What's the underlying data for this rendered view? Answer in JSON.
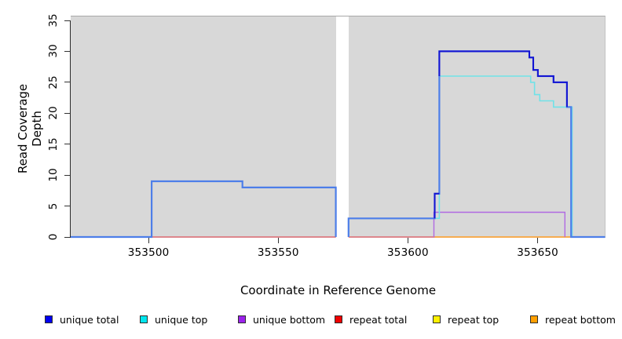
{
  "chart_data": {
    "type": "line",
    "subtype": "step-coverage-plot",
    "title": "",
    "xlabel": "Coordinate in Reference Genome",
    "ylabel": "Read Coverage Depth",
    "xlim": [
      353470,
      353676
    ],
    "ylim": [
      0,
      35
    ],
    "x_ticks": [
      353500,
      353550,
      353600,
      353650
    ],
    "y_ticks": [
      0,
      5,
      10,
      15,
      20,
      25,
      30,
      35
    ],
    "grid": false,
    "panel_bg": "#d8d8d8",
    "no_data_gap_x": [
      353572.2,
      353577.1
    ],
    "legend_position": "bottom",
    "legend": [
      {
        "label": "unique total",
        "color": "#0000f0"
      },
      {
        "label": "unique top",
        "color": "#00e6ee"
      },
      {
        "label": "unique bottom",
        "color": "#9c22ec"
      },
      {
        "label": "repeat total",
        "color": "#ee0000"
      },
      {
        "label": "repeat top",
        "color": "#fff000"
      },
      {
        "label": "repeat bottom",
        "color": "#ff9f00"
      }
    ],
    "series": [
      {
        "name": "repeat total",
        "color": "#e0565e",
        "width": 1.3,
        "subpaths": [
          [
            [
              353501.2,
              0
            ],
            [
              353572.2,
              0
            ]
          ],
          [
            [
              353577.1,
              0
            ],
            [
              353610.3,
              0
            ]
          ]
        ]
      },
      {
        "name": "repeat top",
        "color": "#fff000",
        "width": 1.3,
        "subpaths": []
      },
      {
        "name": "repeat bottom",
        "color": "#ff9d26",
        "width": 1.6,
        "subpaths": [
          [
            [
              353610.3,
              0
            ],
            [
              353663,
              0
            ]
          ]
        ]
      },
      {
        "name": "unique bottom",
        "color": "#b06ae2",
        "width": 1.4,
        "subpaths": [
          [
            [
              353610,
              0
            ],
            [
              353610,
              4
            ],
            [
              353660.5,
              4
            ],
            [
              353660.5,
              0
            ]
          ]
        ]
      },
      {
        "name": "unique top",
        "color": "#70e2e8",
        "width": 1.6,
        "subpaths": [
          [
            [
              353470,
              0
            ],
            [
              353501.2,
              0
            ],
            [
              353501.2,
              9
            ],
            [
              353536.2,
              9
            ],
            [
              353536.2,
              8
            ],
            [
              353572.2,
              8
            ],
            [
              353572.2,
              0
            ]
          ],
          [
            [
              353577.1,
              0
            ],
            [
              353577.1,
              3
            ],
            [
              353610.3,
              3
            ],
            [
              353612.1,
              3
            ],
            [
              353612.1,
              26
            ],
            [
              353647.3,
              26
            ],
            [
              353647.3,
              25
            ],
            [
              353648.8,
              25
            ],
            [
              353648.8,
              23
            ],
            [
              353650.8,
              23
            ],
            [
              353650.8,
              22
            ],
            [
              353656.1,
              22
            ],
            [
              353656.1,
              21
            ],
            [
              353663.3,
              21
            ],
            [
              353663.3,
              0
            ],
            [
              353676,
              0
            ]
          ]
        ]
      },
      {
        "name": "unique total overlapping unique top",
        "color": "#4d7ee9",
        "width": 2.2,
        "subpaths": [
          [
            [
              353470,
              0
            ],
            [
              353501.2,
              0
            ],
            [
              353501.2,
              9
            ],
            [
              353536.2,
              9
            ],
            [
              353536.2,
              8
            ],
            [
              353572.2,
              8
            ],
            [
              353572.2,
              0
            ]
          ],
          [
            [
              353577.1,
              0
            ],
            [
              353577.1,
              3
            ],
            [
              353610.3,
              3
            ],
            [
              353610.3,
              7
            ],
            [
              353612.1,
              7
            ],
            [
              353612.1,
              30
            ],
            [
              353646.8,
              30
            ],
            [
              353646.8,
              29
            ],
            [
              353648.3,
              29
            ],
            [
              353648.3,
              27
            ],
            [
              353650.1,
              27
            ],
            [
              353650.1,
              26
            ],
            [
              353656.1,
              26
            ],
            [
              353656.1,
              25
            ],
            [
              353661.3,
              25
            ],
            [
              353661.3,
              21
            ],
            [
              353662.9,
              21
            ],
            [
              353662.9,
              0
            ],
            [
              353676,
              0
            ]
          ]
        ]
      },
      {
        "name": "unique total distinct",
        "color": "#1414d2",
        "width": 2,
        "subpaths": [
          [
            [
              353610.3,
              3
            ],
            [
              353610.3,
              7
            ],
            [
              353612.1,
              7
            ]
          ],
          [
            [
              353612.1,
              26
            ],
            [
              353612.1,
              30
            ],
            [
              353646.8,
              30
            ],
            [
              353646.8,
              29
            ],
            [
              353648.3,
              29
            ],
            [
              353648.3,
              27
            ],
            [
              353650.1,
              27
            ],
            [
              353650.1,
              26
            ],
            [
              353656.1,
              26
            ],
            [
              353656.1,
              25
            ],
            [
              353661.3,
              25
            ],
            [
              353661.3,
              21
            ]
          ]
        ]
      }
    ]
  }
}
